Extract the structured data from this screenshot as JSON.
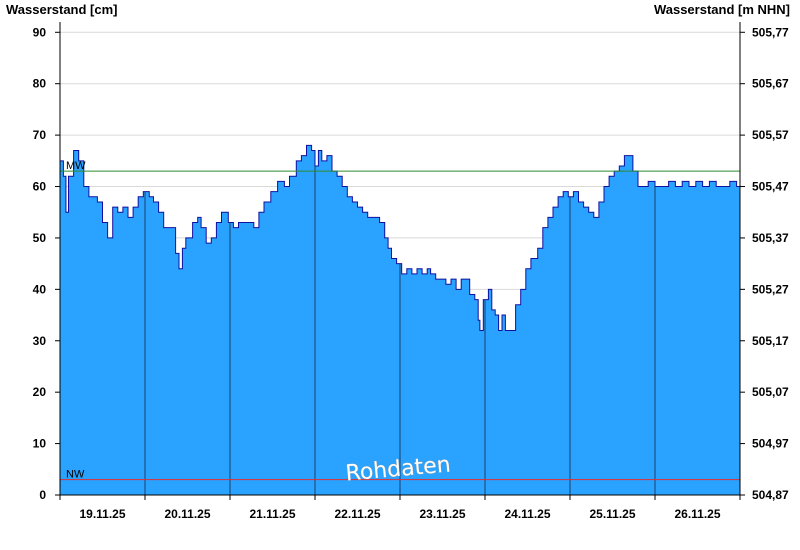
{
  "chart_data": {
    "type": "area",
    "left_axis_title": "Wasserstand [cm]",
    "right_axis_title": "Wasserstand [m NHN]",
    "ylim": [
      0,
      92
    ],
    "y_ticks": [
      0,
      10,
      20,
      30,
      40,
      50,
      60,
      70,
      80,
      90
    ],
    "right_ticks": [
      "504,87",
      "504,97",
      "505,07",
      "505,17",
      "505,27",
      "505,37",
      "505,47",
      "505,57",
      "505,67",
      "505,77"
    ],
    "x_range_days": [
      0,
      8
    ],
    "date_labels": [
      "19.11.25",
      "20.11.25",
      "21.11.25",
      "22.11.25",
      "23.11.25",
      "24.11.25",
      "25.11.25",
      "26.11.25"
    ],
    "reference_lines": [
      {
        "label": "MW",
        "value": 63,
        "color": "#2e8b2e"
      },
      {
        "label": "NW",
        "value": 3,
        "color": "#e03030"
      }
    ],
    "watermark": "Rohdaten",
    "fill_color": "#29a3ff",
    "line_color": "#1010a0",
    "series": [
      {
        "x": 0.0,
        "y": 65
      },
      {
        "x": 0.04,
        "y": 62
      },
      {
        "x": 0.07,
        "y": 55
      },
      {
        "x": 0.1,
        "y": 62
      },
      {
        "x": 0.16,
        "y": 67
      },
      {
        "x": 0.22,
        "y": 65
      },
      {
        "x": 0.28,
        "y": 60
      },
      {
        "x": 0.34,
        "y": 58
      },
      {
        "x": 0.44,
        "y": 57
      },
      {
        "x": 0.5,
        "y": 53
      },
      {
        "x": 0.56,
        "y": 50
      },
      {
        "x": 0.62,
        "y": 56
      },
      {
        "x": 0.68,
        "y": 55
      },
      {
        "x": 0.74,
        "y": 56
      },
      {
        "x": 0.8,
        "y": 54
      },
      {
        "x": 0.86,
        "y": 56
      },
      {
        "x": 0.92,
        "y": 58
      },
      {
        "x": 0.98,
        "y": 59
      },
      {
        "x": 1.05,
        "y": 58
      },
      {
        "x": 1.1,
        "y": 57
      },
      {
        "x": 1.16,
        "y": 55
      },
      {
        "x": 1.22,
        "y": 52
      },
      {
        "x": 1.3,
        "y": 52
      },
      {
        "x": 1.36,
        "y": 47
      },
      {
        "x": 1.4,
        "y": 44
      },
      {
        "x": 1.44,
        "y": 48
      },
      {
        "x": 1.48,
        "y": 50
      },
      {
        "x": 1.56,
        "y": 53
      },
      {
        "x": 1.62,
        "y": 54
      },
      {
        "x": 1.66,
        "y": 52
      },
      {
        "x": 1.72,
        "y": 49
      },
      {
        "x": 1.78,
        "y": 50
      },
      {
        "x": 1.84,
        "y": 53
      },
      {
        "x": 1.9,
        "y": 55
      },
      {
        "x": 1.98,
        "y": 53
      },
      {
        "x": 2.04,
        "y": 52
      },
      {
        "x": 2.1,
        "y": 53
      },
      {
        "x": 2.16,
        "y": 53
      },
      {
        "x": 2.22,
        "y": 53
      },
      {
        "x": 2.28,
        "y": 52
      },
      {
        "x": 2.34,
        "y": 55
      },
      {
        "x": 2.4,
        "y": 57
      },
      {
        "x": 2.48,
        "y": 59
      },
      {
        "x": 2.56,
        "y": 61
      },
      {
        "x": 2.64,
        "y": 60
      },
      {
        "x": 2.7,
        "y": 62
      },
      {
        "x": 2.78,
        "y": 65
      },
      {
        "x": 2.84,
        "y": 66
      },
      {
        "x": 2.9,
        "y": 68
      },
      {
        "x": 2.96,
        "y": 67
      },
      {
        "x": 3.0,
        "y": 64
      },
      {
        "x": 3.04,
        "y": 67
      },
      {
        "x": 3.08,
        "y": 65
      },
      {
        "x": 3.14,
        "y": 66
      },
      {
        "x": 3.2,
        "y": 63
      },
      {
        "x": 3.26,
        "y": 62
      },
      {
        "x": 3.32,
        "y": 60
      },
      {
        "x": 3.38,
        "y": 58
      },
      {
        "x": 3.44,
        "y": 57
      },
      {
        "x": 3.5,
        "y": 56
      },
      {
        "x": 3.56,
        "y": 55
      },
      {
        "x": 3.62,
        "y": 54
      },
      {
        "x": 3.7,
        "y": 54
      },
      {
        "x": 3.76,
        "y": 53
      },
      {
        "x": 3.82,
        "y": 50
      },
      {
        "x": 3.86,
        "y": 48
      },
      {
        "x": 3.9,
        "y": 46
      },
      {
        "x": 3.96,
        "y": 45
      },
      {
        "x": 4.02,
        "y": 43
      },
      {
        "x": 4.08,
        "y": 44
      },
      {
        "x": 4.14,
        "y": 43
      },
      {
        "x": 4.2,
        "y": 44
      },
      {
        "x": 4.26,
        "y": 43
      },
      {
        "x": 4.32,
        "y": 44
      },
      {
        "x": 4.36,
        "y": 43
      },
      {
        "x": 4.42,
        "y": 42
      },
      {
        "x": 4.48,
        "y": 42
      },
      {
        "x": 4.54,
        "y": 41
      },
      {
        "x": 4.6,
        "y": 42
      },
      {
        "x": 4.66,
        "y": 40
      },
      {
        "x": 4.72,
        "y": 42
      },
      {
        "x": 4.78,
        "y": 42
      },
      {
        "x": 4.82,
        "y": 39
      },
      {
        "x": 4.88,
        "y": 38
      },
      {
        "x": 4.92,
        "y": 34
      },
      {
        "x": 4.94,
        "y": 32
      },
      {
        "x": 4.98,
        "y": 38
      },
      {
        "x": 5.04,
        "y": 40
      },
      {
        "x": 5.08,
        "y": 36
      },
      {
        "x": 5.12,
        "y": 35
      },
      {
        "x": 5.16,
        "y": 32
      },
      {
        "x": 5.2,
        "y": 35
      },
      {
        "x": 5.24,
        "y": 32
      },
      {
        "x": 5.3,
        "y": 32
      },
      {
        "x": 5.36,
        "y": 37
      },
      {
        "x": 5.42,
        "y": 40
      },
      {
        "x": 5.48,
        "y": 44
      },
      {
        "x": 5.54,
        "y": 46
      },
      {
        "x": 5.62,
        "y": 48
      },
      {
        "x": 5.68,
        "y": 52
      },
      {
        "x": 5.74,
        "y": 54
      },
      {
        "x": 5.8,
        "y": 56
      },
      {
        "x": 5.86,
        "y": 58
      },
      {
        "x": 5.92,
        "y": 59
      },
      {
        "x": 5.98,
        "y": 58
      },
      {
        "x": 6.04,
        "y": 59
      },
      {
        "x": 6.1,
        "y": 57
      },
      {
        "x": 6.16,
        "y": 56
      },
      {
        "x": 6.22,
        "y": 55
      },
      {
        "x": 6.28,
        "y": 54
      },
      {
        "x": 6.34,
        "y": 57
      },
      {
        "x": 6.4,
        "y": 60
      },
      {
        "x": 6.46,
        "y": 62
      },
      {
        "x": 6.52,
        "y": 63
      },
      {
        "x": 6.58,
        "y": 64
      },
      {
        "x": 6.64,
        "y": 66
      },
      {
        "x": 6.7,
        "y": 66
      },
      {
        "x": 6.74,
        "y": 63
      },
      {
        "x": 6.8,
        "y": 60
      },
      {
        "x": 6.86,
        "y": 60
      },
      {
        "x": 6.92,
        "y": 61
      },
      {
        "x": 7.0,
        "y": 60
      },
      {
        "x": 7.08,
        "y": 60
      },
      {
        "x": 7.16,
        "y": 61
      },
      {
        "x": 7.24,
        "y": 60
      },
      {
        "x": 7.32,
        "y": 61
      },
      {
        "x": 7.4,
        "y": 60
      },
      {
        "x": 7.48,
        "y": 61
      },
      {
        "x": 7.56,
        "y": 60
      },
      {
        "x": 7.64,
        "y": 61
      },
      {
        "x": 7.72,
        "y": 60
      },
      {
        "x": 7.8,
        "y": 60
      },
      {
        "x": 7.88,
        "y": 61
      },
      {
        "x": 7.96,
        "y": 60
      },
      {
        "x": 8.0,
        "y": 60
      }
    ]
  }
}
